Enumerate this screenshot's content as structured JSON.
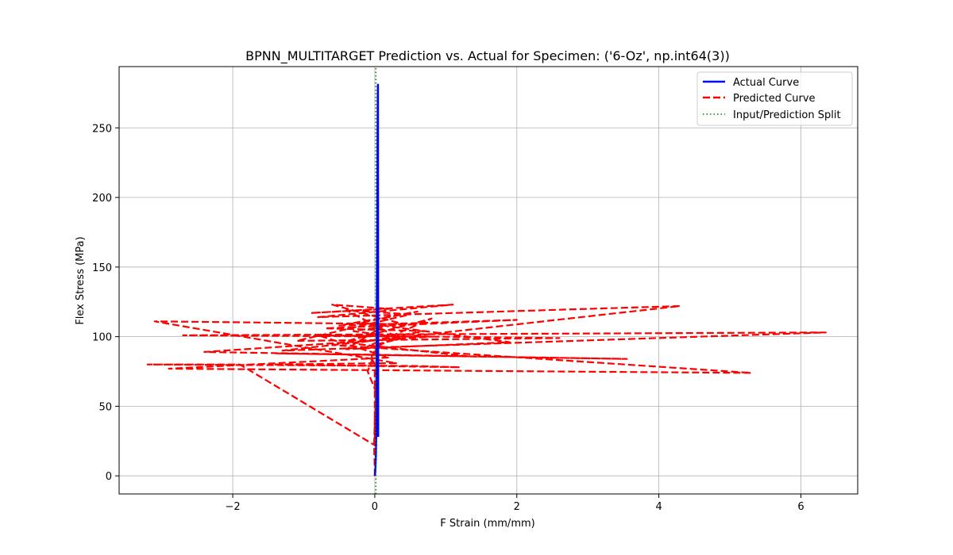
{
  "chart_data": {
    "type": "line",
    "title": "BPNN_MULTITARGET Prediction vs. Actual for Specimen: ('6-Oz', np.int64(3))",
    "xlabel": "F Strain (mm/mm)",
    "ylabel": "Flex Stress (MPa)",
    "xlim": [
      -3.6,
      6.8
    ],
    "ylim": [
      -13,
      294
    ],
    "xticks": [
      -2,
      0,
      2,
      4,
      6
    ],
    "xtick_labels": [
      "−2",
      "0",
      "2",
      "4",
      "6"
    ],
    "yticks": [
      0,
      50,
      100,
      150,
      200,
      250
    ],
    "ytick_labels": [
      "0",
      "50",
      "100",
      "150",
      "200",
      "250"
    ],
    "grid": true,
    "legend_position": "top-right",
    "series": [
      {
        "name": "Actual Curve",
        "color": "#0000ff",
        "style": "solid",
        "x": [
          0.0,
          0.005,
          0.01,
          0.015,
          0.02,
          0.024,
          0.026,
          0.028,
          0.03,
          0.033,
          0.036,
          0.038,
          0.04,
          0.042,
          0.045,
          0.047,
          0.048
        ],
        "y": [
          0,
          2,
          6,
          14,
          28,
          50,
          80,
          110,
          130,
          160,
          190,
          220,
          250,
          270,
          281,
          150,
          28
        ]
      },
      {
        "name": "Predicted Curve",
        "color": "#ff0000",
        "style": "dashed",
        "x": [
          0.0,
          0.0,
          -0.01,
          0.0,
          0.02,
          -0.1,
          0.05,
          -0.05,
          0.0,
          0.0,
          -1.9,
          -3.2,
          0.5,
          1.2,
          -1.5,
          0.3,
          -3.1,
          0.4,
          -0.6,
          0.2,
          -0.9,
          1.1,
          -0.8,
          4.3,
          -1.3,
          6.35,
          -2.7,
          0.8,
          -2.4,
          3.55,
          -1.4,
          1.3,
          -0.3,
          0.7,
          -0.7,
          2.0,
          -0.5,
          0.6,
          -0.2,
          1.9,
          -0.4,
          0.1,
          -0.3,
          0.4,
          -0.1,
          0.8,
          -0.6,
          5.3,
          -2.9,
          0.2,
          -0.8,
          2.6,
          -1.1,
          0.5,
          -0.4,
          0.3,
          0.0
        ],
        "y": [
          0,
          5,
          22,
          40,
          60,
          75,
          95,
          85,
          80,
          22,
          80,
          80,
          79,
          78,
          80,
          81,
          111,
          109,
          123,
          120,
          117,
          123,
          114,
          122,
          90,
          103,
          101,
          100,
          89,
          84,
          88,
          86,
          95,
          104,
          106,
          112,
          108,
          118,
          110,
          96,
          91,
          107,
          104,
          99,
          93,
          113,
          94,
          74,
          77,
          85,
          101,
          99,
          97,
          116,
          119,
          100,
          92
        ]
      },
      {
        "name": "Input/Prediction Split",
        "color": "#008000",
        "style": "dotted",
        "x": [
          0.015,
          0.015
        ],
        "y": [
          -13,
          294
        ]
      }
    ]
  }
}
